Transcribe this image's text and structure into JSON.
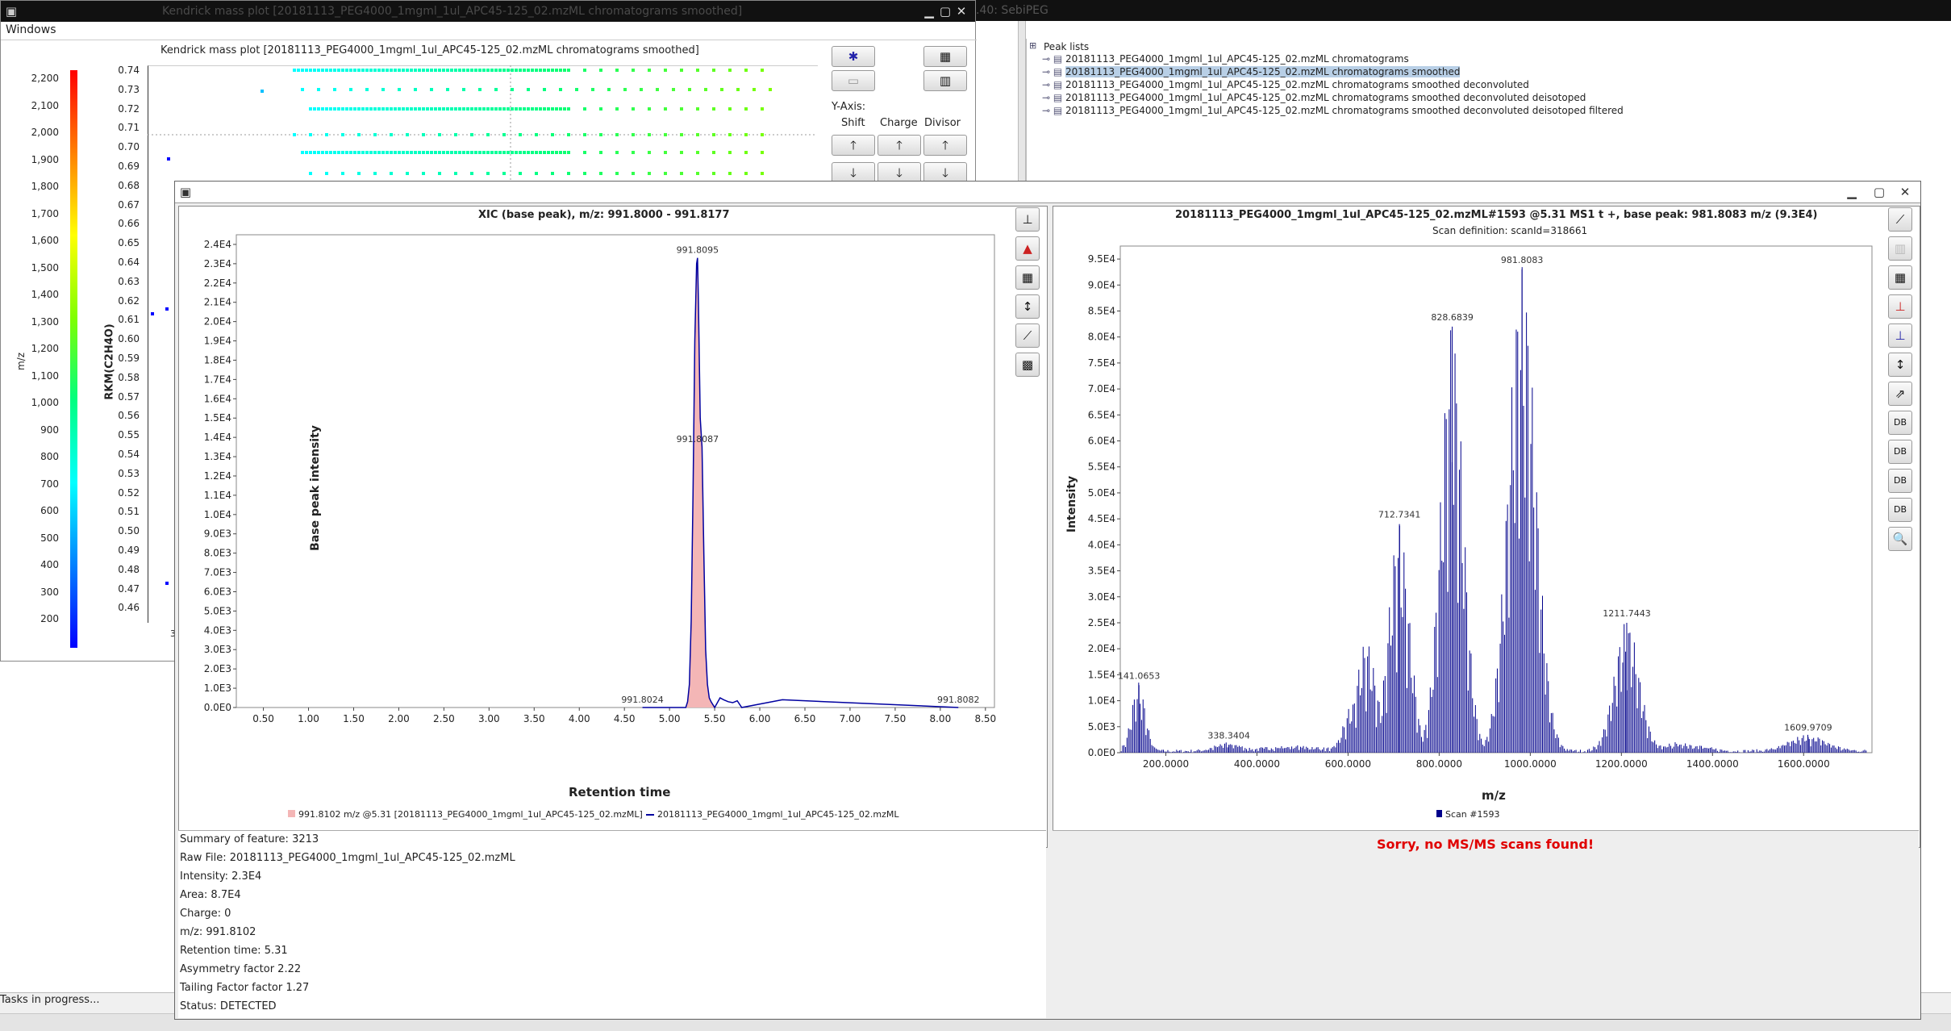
{
  "desktop": {
    "top_title_right": ".40: SebiPEG",
    "tasks_label": "Tasks in progress..."
  },
  "kendrick": {
    "window_title": "Kendrick mass plot [20181113_PEG4000_1mgml_1ul_APC45-125_02.mzML chromatograms smoothed]",
    "menu": "Windows",
    "plot_title": "Kendrick mass plot [20181113_PEG4000_1mgml_1ul_APC45-125_02.mzML chromatograms smoothed]",
    "colorbar_label": "m/z",
    "colorbar_ticks": [
      "2,200",
      "2,100",
      "2,000",
      "1,900",
      "1,800",
      "1,700",
      "1,600",
      "1,500",
      "1,400",
      "1,300",
      "1,200",
      "1,100",
      "1,000",
      "900",
      "800",
      "700",
      "600",
      "500",
      "400",
      "300",
      "200"
    ],
    "yaxis_label": "RKM(C2H4O)",
    "yticks": [
      "0.74",
      "0.73",
      "0.72",
      "0.71",
      "0.70",
      "0.69",
      "0.68",
      "0.67",
      "0.66",
      "0.65",
      "0.64",
      "0.63",
      "0.62",
      "0.61",
      "0.60",
      "0.59",
      "0.58",
      "0.57",
      "0.56",
      "0.55",
      "0.54",
      "0.53",
      "0.52",
      "0.51",
      "0.50",
      "0.49",
      "0.48",
      "0.47",
      "0.46"
    ],
    "yaxis_section": "Y-Axis:",
    "shift_label": "Shift",
    "charge_label": "Charge",
    "divisor_label": "Divisor",
    "x_tick_partial": "3"
  },
  "peaklist": {
    "header": "Peak lists",
    "items": [
      "20181113_PEG4000_1mgml_1ul_APC45-125_02.mzML chromatograms",
      "20181113_PEG4000_1mgml_1ul_APC45-125_02.mzML chromatograms smoothed",
      "20181113_PEG4000_1mgml_1ul_APC45-125_02.mzML chromatograms smoothed deconvoluted",
      "20181113_PEG4000_1mgml_1ul_APC45-125_02.mzML chromatograms smoothed deconvoluted deisotoped",
      "20181113_PEG4000_1mgml_1ul_APC45-125_02.mzML chromatograms smoothed deconvoluted deisotoped filtered"
    ],
    "selected_index": 1
  },
  "xic": {
    "title": "XIC (base peak), m/z: 991.8000 - 991.8177",
    "ylabel": "Base peak intensity",
    "xlabel": "Retention time",
    "legend": [
      "991.8102 m/z @5.31 [20181113_PEG4000_1mgml_1ul_APC45-125_02.mzML]",
      "20181113_PEG4000_1mgml_1ul_APC45-125_02.mzML"
    ],
    "fill_color": "#f4b6b6",
    "line_color": "#0000a0"
  },
  "spectrum": {
    "title": "20181113_PEG4000_1mgml_1ul_APC45-125_02.mzML#1593 @5.31 MS1 t +, base peak: 981.8083 m/z (9.3E4)",
    "subtitle": "Scan definition: scanId=318661",
    "ylabel": "Intensity",
    "xlabel": "m/z",
    "legend": "Scan #1593",
    "color": "#00008b",
    "db_label": "DB"
  },
  "msms_message": "Sorry, no MS/MS scans found!",
  "summary": [
    "Summary of feature: 3213",
    "Raw File: 20181113_PEG4000_1mgml_1ul_APC45-125_02.mzML",
    "Intensity: 2.3E4",
    "Area: 8.7E4",
    "Charge: 0",
    "m/z: 991.8102",
    "Retention time: 5.31",
    "Asymmetry factor 2.22",
    "Tailing Factor factor 1.27",
    "Status: DETECTED"
  ],
  "chart_data": [
    {
      "type": "line",
      "title": "XIC (base peak), m/z: 991.8000 - 991.8177",
      "xlabel": "Retention time",
      "ylabel": "Base peak intensity",
      "xlim": [
        0.2,
        8.6
      ],
      "ylim": [
        0,
        24500
      ],
      "xticks": [
        "0.50",
        "1.00",
        "1.50",
        "2.00",
        "2.50",
        "3.00",
        "3.50",
        "4.00",
        "4.50",
        "5.00",
        "5.50",
        "6.00",
        "6.50",
        "7.00",
        "7.50",
        "8.00",
        "8.50"
      ],
      "yticks": [
        "0.0E0",
        "1.0E3",
        "2.0E3",
        "3.0E3",
        "4.0E3",
        "5.0E3",
        "6.0E3",
        "7.0E3",
        "8.0E3",
        "9.0E3",
        "1.0E4",
        "1.1E4",
        "1.2E4",
        "1.3E4",
        "1.4E4",
        "1.5E4",
        "1.6E4",
        "1.7E4",
        "1.8E4",
        "1.9E4",
        "2.0E4",
        "2.1E4",
        "2.2E4",
        "2.3E4",
        "2.4E4"
      ],
      "series": [
        {
          "name": "20181113_PEG4000_1mgml_1ul_APC45-125_02.mzML",
          "x": [
            4.7,
            5.18,
            5.2,
            5.22,
            5.24,
            5.26,
            5.28,
            5.3,
            5.31,
            5.32,
            5.33,
            5.34,
            5.36,
            5.38,
            5.4,
            5.42,
            5.44,
            5.46,
            5.5,
            5.56,
            5.6,
            5.65,
            5.7,
            5.75,
            5.8,
            6.25,
            8.2
          ],
          "y": [
            0,
            0,
            300,
            1200,
            4500,
            11000,
            19000,
            23000,
            23300,
            21000,
            18000,
            15000,
            13500,
            8000,
            3000,
            1200,
            500,
            300,
            0,
            500,
            400,
            300,
            250,
            350,
            0,
            400,
            0
          ]
        }
      ],
      "annotations": [
        {
          "x": 5.31,
          "y": 23300,
          "text": "991.8095"
        },
        {
          "x": 5.31,
          "y": 13500,
          "text": "991.8087"
        },
        {
          "x": 4.7,
          "y": 0,
          "text": "991.8024"
        },
        {
          "x": 8.2,
          "y": 0,
          "text": "991.8082"
        }
      ]
    },
    {
      "type": "bar",
      "title": "20181113_PEG4000_1mgml_1ul_APC45-125_02.mzML#1593 @5.31 MS1 t +, base peak: 981.8083 m/z (9.3E4)",
      "xlabel": "m/z",
      "ylabel": "Intensity",
      "xlim": [
        100,
        1750
      ],
      "ylim": [
        0,
        97500
      ],
      "xticks": [
        "200.0000",
        "400.0000",
        "600.0000",
        "800.0000",
        "1000.0000",
        "1200.0000",
        "1400.0000",
        "1600.0000"
      ],
      "yticks": [
        "0.0E0",
        "5.0E3",
        "1.0E4",
        "1.5E4",
        "2.0E4",
        "2.5E4",
        "3.0E4",
        "3.5E4",
        "4.0E4",
        "4.5E4",
        "5.0E4",
        "5.5E4",
        "6.0E4",
        "6.5E4",
        "7.0E4",
        "7.5E4",
        "8.0E4",
        "8.5E4",
        "9.0E4",
        "9.5E4"
      ],
      "envelopes": [
        {
          "center": 140,
          "width": 20,
          "height": 13000
        },
        {
          "center": 338,
          "width": 40,
          "height": 1500
        },
        {
          "center": 480,
          "width": 90,
          "height": 900
        },
        {
          "center": 610,
          "width": 25,
          "height": 9000
        },
        {
          "center": 640,
          "width": 30,
          "height": 21000
        },
        {
          "center": 712,
          "width": 30,
          "height": 44000
        },
        {
          "center": 828,
          "width": 33,
          "height": 82000
        },
        {
          "center": 982,
          "width": 40,
          "height": 93000
        },
        {
          "center": 1212,
          "width": 36,
          "height": 25000
        },
        {
          "center": 1330,
          "width": 60,
          "height": 1500
        },
        {
          "center": 1610,
          "width": 55,
          "height": 3000
        }
      ],
      "annotations": [
        {
          "x": 141.0653,
          "y": 13000,
          "text": "141.0653"
        },
        {
          "x": 338.3404,
          "y": 1500,
          "text": "338.3404"
        },
        {
          "x": 712.7341,
          "y": 44000,
          "text": "712.7341"
        },
        {
          "x": 828.6839,
          "y": 82000,
          "text": "828.6839"
        },
        {
          "x": 981.8083,
          "y": 93000,
          "text": "981.8083"
        },
        {
          "x": 1211.7443,
          "y": 25000,
          "text": "1211.7443"
        },
        {
          "x": 1609.9709,
          "y": 3000,
          "text": "1609.9709"
        }
      ],
      "series": [
        {
          "name": "Scan #1593"
        }
      ]
    }
  ]
}
